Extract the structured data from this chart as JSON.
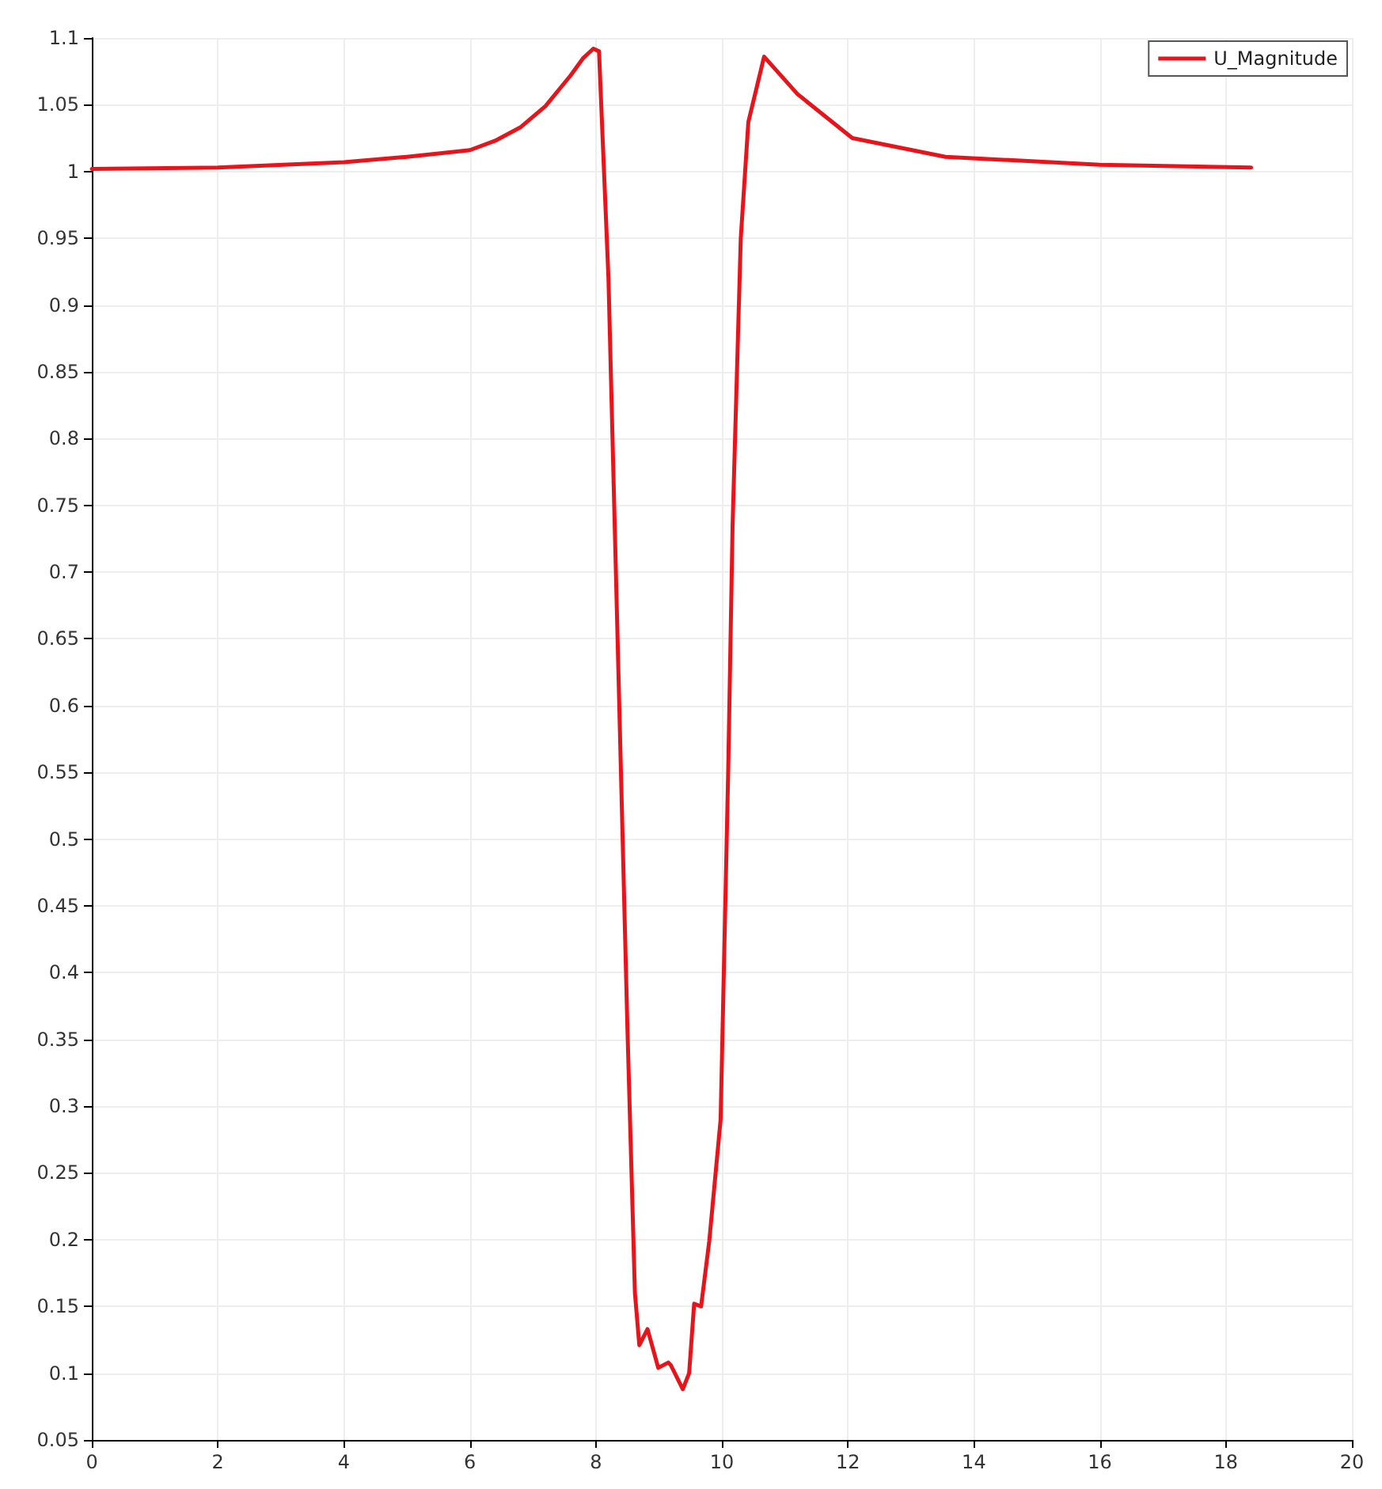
{
  "chart_data": {
    "type": "line",
    "legend": "top right",
    "grid": true,
    "marker": "none",
    "line_style": "solid",
    "xlim": [
      0,
      20
    ],
    "xticks": [
      0,
      2,
      4,
      6,
      8,
      10,
      12,
      14,
      16,
      18,
      20
    ],
    "ylim": [
      0.05,
      1.1
    ],
    "yticks": [
      0.05,
      0.1,
      0.15,
      0.2,
      0.25,
      0.3,
      0.35,
      0.4,
      0.45,
      0.5,
      0.55,
      0.6,
      0.65,
      0.7,
      0.75,
      0.8,
      0.85,
      0.9,
      0.95,
      1,
      1.05,
      1.1
    ],
    "series": [
      {
        "name": "U_Magnitude",
        "color": "#e8141c",
        "x": [
          0,
          2,
          4,
          5,
          6,
          6.4,
          6.8,
          7.2,
          7.6,
          7.8,
          7.96,
          8.05,
          8.2,
          8.5,
          8.62,
          8.69,
          8.82,
          8.99,
          9.15,
          9.19,
          9.38,
          9.48,
          9.56,
          9.67,
          9.8,
          9.98,
          10.1,
          10.17,
          10.3,
          10.42,
          10.67,
          11.2,
          12.07,
          13.55,
          16,
          18.4
        ],
        "values": [
          1.002,
          1.003,
          1.007,
          1.011,
          1.016,
          1.023,
          1.033,
          1.049,
          1.072,
          1.085,
          1.092,
          1.09,
          0.92,
          0.36,
          0.16,
          0.121,
          0.133,
          0.104,
          0.108,
          0.106,
          0.088,
          0.1,
          0.152,
          0.15,
          0.199,
          0.29,
          0.55,
          0.735,
          0.95,
          1.037,
          1.086,
          1.058,
          1.025,
          1.011,
          1.005,
          1.003
        ]
      }
    ]
  }
}
